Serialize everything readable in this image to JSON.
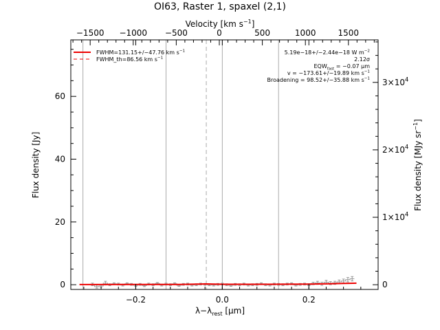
{
  "chart_data": {
    "type": "line",
    "title": "OI63, Raster 1, spaxel (2,1)",
    "xlabel": "λ−λ_rest [μm]",
    "xlabel_parts": {
      "lambda": "λ−λ",
      "sub": "rest",
      "unit": " [μm]"
    },
    "ylabel": "Flux density [Jy]",
    "top_axis": {
      "label": "Velocity [km s⁻¹]",
      "label_parts": {
        "text": "Velocity [km s",
        "sup": "−1",
        "close": "]"
      },
      "ticks": [
        -1500,
        -1000,
        -500,
        0,
        500,
        1000,
        1500
      ],
      "tick_labels": [
        "−1500",
        "−1000",
        "−500",
        "0",
        "500",
        "1000",
        "1500"
      ]
    },
    "right_axis": {
      "label": "Flux density [MJy sr⁻¹]",
      "label_parts": {
        "text": "Flux density [MJy sr",
        "sup": "−1",
        "close": "]"
      },
      "ticks": [
        0,
        10000,
        20000,
        30000
      ],
      "tick_labels": [
        {
          "base": "0",
          "sup": ""
        },
        {
          "base": "1×10",
          "sup": "4"
        },
        {
          "base": "2×10",
          "sup": "4"
        },
        {
          "base": "3×10",
          "sup": "4"
        }
      ]
    },
    "xlim": [
      -0.35,
      0.36
    ],
    "ylim": [
      -1.5,
      78
    ],
    "x_ticks": [
      -0.2,
      0.0,
      0.2
    ],
    "x_tick_labels": [
      "−0.2",
      "0.0",
      "0.2"
    ],
    "y_ticks": [
      0,
      20,
      40,
      60
    ],
    "y_tick_labels": [
      "0",
      "20",
      "40",
      "60"
    ],
    "grid": false,
    "vertical_lines": {
      "solid_gray": [
        -0.322,
        -0.13,
        0.0,
        0.13
      ],
      "dashed_gray": [
        -0.037
      ]
    },
    "series": [
      {
        "name": "data",
        "style": "histogram-with-errorbars",
        "color": "#999999",
        "x": [
          -0.3,
          -0.29,
          -0.28,
          -0.27,
          -0.26,
          -0.25,
          -0.24,
          -0.23,
          -0.22,
          -0.21,
          -0.2,
          -0.19,
          -0.18,
          -0.17,
          -0.16,
          -0.15,
          -0.14,
          -0.13,
          -0.12,
          -0.11,
          -0.1,
          -0.09,
          -0.08,
          -0.07,
          -0.06,
          -0.05,
          -0.04,
          -0.03,
          -0.02,
          -0.01,
          0.0,
          0.01,
          0.02,
          0.03,
          0.04,
          0.05,
          0.06,
          0.07,
          0.08,
          0.09,
          0.1,
          0.11,
          0.12,
          0.13,
          0.14,
          0.15,
          0.16,
          0.17,
          0.18,
          0.19,
          0.2,
          0.21,
          0.22,
          0.23,
          0.24,
          0.25,
          0.26,
          0.27,
          0.28,
          0.29,
          0.3
        ],
        "y": [
          0.1,
          -0.6,
          -0.4,
          0.5,
          0.0,
          0.3,
          0.2,
          -0.1,
          0.3,
          0.1,
          -0.2,
          0.1,
          -0.3,
          0.2,
          0.0,
          0.4,
          -0.1,
          0.2,
          0.0,
          0.3,
          -0.2,
          0.1,
          0.2,
          -0.1,
          0.0,
          0.2,
          0.1,
          0.0,
          -0.1,
          0.1,
          0.2,
          0.0,
          -0.2,
          0.1,
          0.0,
          0.2,
          -0.1,
          0.0,
          0.1,
          0.3,
          0.0,
          -0.1,
          0.2,
          0.1,
          0.0,
          0.2,
          0.3,
          -0.1,
          0.1,
          0.2,
          0.0,
          0.4,
          0.6,
          0.3,
          0.8,
          0.5,
          0.6,
          0.9,
          1.2,
          1.6,
          1.9
        ],
        "err": [
          0.4,
          0.5,
          0.4,
          0.6,
          0.3,
          0.3,
          0.3,
          0.3,
          0.3,
          0.3,
          0.3,
          0.3,
          0.3,
          0.3,
          0.3,
          0.3,
          0.3,
          0.3,
          0.3,
          0.3,
          0.3,
          0.3,
          0.3,
          0.3,
          0.3,
          0.3,
          0.3,
          0.3,
          0.3,
          0.3,
          0.3,
          0.3,
          0.3,
          0.3,
          0.3,
          0.3,
          0.3,
          0.3,
          0.3,
          0.3,
          0.3,
          0.3,
          0.3,
          0.3,
          0.3,
          0.3,
          0.3,
          0.3,
          0.3,
          0.3,
          0.3,
          0.4,
          0.5,
          0.5,
          0.6,
          0.5,
          0.5,
          0.6,
          0.6,
          0.7,
          0.7
        ]
      },
      {
        "name": "fit",
        "style": "line",
        "color": "#ee0000",
        "x": [
          -0.33,
          -0.2,
          -0.1,
          -0.037,
          0.0,
          0.1,
          0.2,
          0.25,
          0.28,
          0.31
        ],
        "y": [
          0.05,
          0.08,
          0.1,
          0.25,
          0.15,
          0.15,
          0.2,
          0.3,
          0.4,
          0.5
        ]
      }
    ],
    "legend": {
      "placement": "top-left",
      "entries": [
        {
          "label": "FWHM=131.15+/−47.76 km s⁻¹",
          "text": "FWHM=131.15+/−47.76 km s",
          "sup": "−1",
          "color": "#ee0000",
          "style": "solid"
        },
        {
          "label": "FWHM_th=86.56 km s⁻¹",
          "text": "FWHM_th=86.56 km s",
          "sup": "−1",
          "color": "#ee0000",
          "style": "dashed"
        }
      ]
    },
    "annotations": {
      "placement": "top-right",
      "lines": [
        {
          "text": "5.19e−18+/−2.44e−18 W m",
          "sup": "−2"
        },
        {
          "text": "2.12σ",
          "sup": ""
        },
        {
          "text": "EQW",
          "sub": "fast",
          "tail": " = −0.07 μm"
        },
        {
          "text": "v = −173.61+/−19.89 km s",
          "sup": "−1"
        },
        {
          "text": "Broadening = 98.52+/−35.88 km s",
          "sup": "−1"
        }
      ]
    },
    "colors": {
      "axes": "#000000",
      "data": "#999999",
      "fit": "#ee0000",
      "markers": "#aaaaaa"
    }
  }
}
